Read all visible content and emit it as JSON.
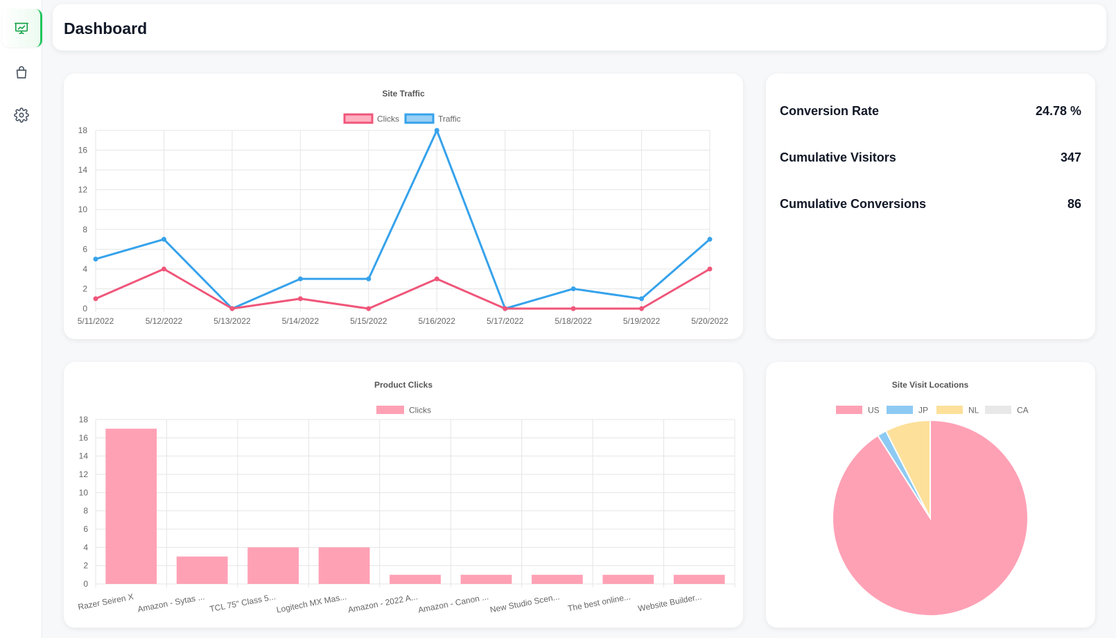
{
  "header": {
    "title": "Dashboard"
  },
  "sidebar": {
    "items": [
      {
        "icon": "presentation-chart-icon",
        "active": true
      },
      {
        "icon": "shopping-bag-icon",
        "active": false
      },
      {
        "icon": "gear-icon",
        "active": false
      }
    ]
  },
  "stats": [
    {
      "label": "Conversion Rate",
      "value": "24.78 %"
    },
    {
      "label": "Cumulative Visitors",
      "value": "347"
    },
    {
      "label": "Cumulative Conversions",
      "value": "86"
    }
  ],
  "chart_data": [
    {
      "type": "line",
      "title": "Site Traffic",
      "x": [
        "5/11/2022",
        "5/12/2022",
        "5/13/2022",
        "5/14/2022",
        "5/15/2022",
        "5/16/2022",
        "5/17/2022",
        "5/18/2022",
        "5/19/2022",
        "5/20/2022"
      ],
      "series": [
        {
          "name": "Clicks",
          "values": [
            1,
            4,
            0,
            1,
            0,
            3,
            0,
            0,
            0,
            4
          ],
          "color": "#f0567a",
          "fill": "#ffb1c1"
        },
        {
          "name": "Traffic",
          "values": [
            5,
            7,
            0,
            3,
            3,
            18,
            0,
            2,
            1,
            7
          ],
          "color": "#36a2eb",
          "fill": "#9ad0f5"
        }
      ],
      "ylim": [
        0,
        18
      ],
      "yticks": [
        0,
        2,
        4,
        6,
        8,
        10,
        12,
        14,
        16,
        18
      ],
      "grid": true,
      "legend": "top"
    },
    {
      "type": "bar",
      "title": "Product Clicks",
      "categories": [
        "Razer Seiren X",
        "Amazon - Sytas ...",
        "TCL 75\" Class 5...",
        "Logitech MX Mas...",
        "Amazon - 2022 A...",
        "Amazon - Canon ...",
        "New Studio Scen...",
        "The best online...",
        "Website Builder..."
      ],
      "series": [
        {
          "name": "Clicks",
          "values": [
            17,
            3,
            4,
            4,
            1,
            1,
            1,
            1,
            1
          ],
          "color": "#ffa1b5"
        }
      ],
      "ylim": [
        0,
        18
      ],
      "yticks": [
        0,
        2,
        4,
        6,
        8,
        10,
        12,
        14,
        16,
        18
      ],
      "grid": true,
      "legend": "top"
    },
    {
      "type": "pie",
      "title": "Site Visit Locations",
      "categories": [
        "US",
        "JP",
        "NL",
        "CA"
      ],
      "values": [
        91,
        1.5,
        7.5,
        0
      ],
      "colors": [
        "#ffa1b5",
        "#8dcaf3",
        "#fde09a",
        "#e8e8e8"
      ],
      "legend": "top"
    }
  ]
}
